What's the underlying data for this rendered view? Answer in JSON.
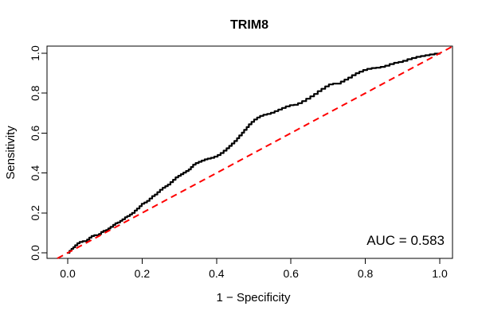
{
  "chart_data": {
    "type": "line",
    "subtype": "roc-curve",
    "title": "TRIM8",
    "xlabel": "1 − Specificity",
    "ylabel": "Sensitivity",
    "xlim": [
      0,
      1
    ],
    "ylim": [
      0,
      1
    ],
    "x_tick_labels": [
      "0.0",
      "0.2",
      "0.4",
      "0.6",
      "0.8",
      "1.0"
    ],
    "y_tick_labels": [
      "0.0",
      "0.2",
      "0.4",
      "0.6",
      "0.8",
      "1.0"
    ],
    "grid": false,
    "legend_position": "none",
    "annotation": {
      "auc_text": "AUC = 0.583",
      "auc_value": 0.583,
      "position": "bottom-right"
    },
    "colors": {
      "roc_curve": "#000000",
      "reference_line": "#FF0000",
      "text": "#000000",
      "box": "#000000",
      "background": "#FFFFFF"
    },
    "series": [
      {
        "name": "ROC curve",
        "draw": "step",
        "color": "#000000",
        "line_style": "solid",
        "line_width": 2.2,
        "points": [
          [
            0,
            0
          ],
          [
            0.005,
            0.01
          ],
          [
            0.01,
            0.02
          ],
          [
            0.015,
            0.028
          ],
          [
            0.02,
            0.038
          ],
          [
            0.026,
            0.048
          ],
          [
            0.032,
            0.054
          ],
          [
            0.04,
            0.058
          ],
          [
            0.047,
            0.058
          ],
          [
            0.052,
            0.066
          ],
          [
            0.058,
            0.076
          ],
          [
            0.064,
            0.084
          ],
          [
            0.071,
            0.088
          ],
          [
            0.078,
            0.088
          ],
          [
            0.084,
            0.094
          ],
          [
            0.09,
            0.104
          ],
          [
            0.096,
            0.11
          ],
          [
            0.103,
            0.114
          ],
          [
            0.109,
            0.122
          ],
          [
            0.115,
            0.13
          ],
          [
            0.122,
            0.14
          ],
          [
            0.128,
            0.148
          ],
          [
            0.134,
            0.152
          ],
          [
            0.141,
            0.16
          ],
          [
            0.147,
            0.168
          ],
          [
            0.154,
            0.178
          ],
          [
            0.16,
            0.184
          ],
          [
            0.167,
            0.192
          ],
          [
            0.173,
            0.2
          ],
          [
            0.18,
            0.212
          ],
          [
            0.186,
            0.222
          ],
          [
            0.193,
            0.234
          ],
          [
            0.199,
            0.246
          ],
          [
            0.206,
            0.252
          ],
          [
            0.213,
            0.26
          ],
          [
            0.22,
            0.272
          ],
          [
            0.227,
            0.284
          ],
          [
            0.234,
            0.292
          ],
          [
            0.241,
            0.304
          ],
          [
            0.248,
            0.316
          ],
          [
            0.255,
            0.326
          ],
          [
            0.262,
            0.334
          ],
          [
            0.269,
            0.342
          ],
          [
            0.276,
            0.354
          ],
          [
            0.283,
            0.366
          ],
          [
            0.29,
            0.378
          ],
          [
            0.297,
            0.386
          ],
          [
            0.304,
            0.394
          ],
          [
            0.311,
            0.402
          ],
          [
            0.318,
            0.41
          ],
          [
            0.325,
            0.418
          ],
          [
            0.331,
            0.43
          ],
          [
            0.337,
            0.442
          ],
          [
            0.344,
            0.45
          ],
          [
            0.352,
            0.456
          ],
          [
            0.36,
            0.462
          ],
          [
            0.368,
            0.468
          ],
          [
            0.376,
            0.472
          ],
          [
            0.385,
            0.476
          ],
          [
            0.394,
            0.482
          ],
          [
            0.403,
            0.49
          ],
          [
            0.411,
            0.5
          ],
          [
            0.419,
            0.512
          ],
          [
            0.427,
            0.524
          ],
          [
            0.434,
            0.536
          ],
          [
            0.441,
            0.548
          ],
          [
            0.448,
            0.56
          ],
          [
            0.455,
            0.574
          ],
          [
            0.461,
            0.588
          ],
          [
            0.468,
            0.602
          ],
          [
            0.474,
            0.616
          ],
          [
            0.481,
            0.63
          ],
          [
            0.487,
            0.644
          ],
          [
            0.494,
            0.656
          ],
          [
            0.501,
            0.668
          ],
          [
            0.509,
            0.678
          ],
          [
            0.517,
            0.686
          ],
          [
            0.526,
            0.692
          ],
          [
            0.536,
            0.696
          ],
          [
            0.546,
            0.702
          ],
          [
            0.556,
            0.71
          ],
          [
            0.566,
            0.718
          ],
          [
            0.576,
            0.726
          ],
          [
            0.586,
            0.734
          ],
          [
            0.597,
            0.74
          ],
          [
            0.608,
            0.742
          ],
          [
            0.619,
            0.75
          ],
          [
            0.63,
            0.76
          ],
          [
            0.641,
            0.772
          ],
          [
            0.652,
            0.784
          ],
          [
            0.662,
            0.796
          ],
          [
            0.672,
            0.81
          ],
          [
            0.682,
            0.822
          ],
          [
            0.692,
            0.834
          ],
          [
            0.702,
            0.844
          ],
          [
            0.713,
            0.848
          ],
          [
            0.724,
            0.848
          ],
          [
            0.734,
            0.858
          ],
          [
            0.744,
            0.868
          ],
          [
            0.754,
            0.878
          ],
          [
            0.764,
            0.89
          ],
          [
            0.774,
            0.9
          ],
          [
            0.784,
            0.908
          ],
          [
            0.794,
            0.916
          ],
          [
            0.805,
            0.922
          ],
          [
            0.817,
            0.926
          ],
          [
            0.829,
            0.928
          ],
          [
            0.841,
            0.932
          ],
          [
            0.853,
            0.938
          ],
          [
            0.865,
            0.946
          ],
          [
            0.877,
            0.952
          ],
          [
            0.889,
            0.956
          ],
          [
            0.901,
            0.962
          ],
          [
            0.913,
            0.97
          ],
          [
            0.925,
            0.976
          ],
          [
            0.937,
            0.982
          ],
          [
            0.949,
            0.986
          ],
          [
            0.961,
            0.99
          ],
          [
            0.973,
            0.994
          ],
          [
            0.986,
            0.998
          ],
          [
            1,
            1
          ]
        ]
      },
      {
        "name": "chance diagonal",
        "draw": "line",
        "color": "#FF0000",
        "line_style": "dashed",
        "line_width": 2,
        "points": [
          [
            0,
            0
          ],
          [
            1,
            1
          ]
        ]
      }
    ]
  }
}
